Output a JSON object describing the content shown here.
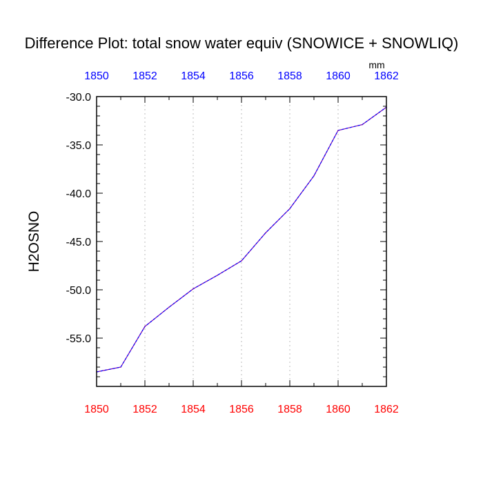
{
  "chart_data": {
    "type": "line",
    "title": "Difference Plot: total snow water equiv (SNOWICE + SNOWLIQ)",
    "units": "mm",
    "xlabel": "",
    "ylabel": "H2OSNO",
    "x": [
      1850,
      1851,
      1852,
      1853,
      1854,
      1855,
      1856,
      1857,
      1858,
      1859,
      1860,
      1861,
      1862
    ],
    "series": [
      {
        "values": [
          -58.5,
          -58.0,
          -53.8,
          -51.8,
          -49.9,
          -48.5,
          -47.0,
          -44.1,
          -41.6,
          -38.2,
          -33.5,
          -32.9,
          -31.1
        ],
        "color": "#7700aa",
        "dash_color": "#0000ff",
        "style": "dashed"
      }
    ],
    "xlim": [
      1850,
      1862
    ],
    "ylim": [
      -60.0,
      -30.0
    ],
    "x_ticks": [
      1850,
      1852,
      1854,
      1856,
      1858,
      1860,
      1862
    ],
    "x_tick_labels": [
      "1850",
      "1852",
      "1854",
      "1856",
      "1858",
      "1860",
      "1862"
    ],
    "y_ticks": [
      -30.0,
      -35.0,
      -40.0,
      -45.0,
      -50.0,
      -55.0
    ],
    "y_tick_labels": [
      "-30.0",
      "-35.0",
      "-40.0",
      "-45.0",
      "-50.0",
      "-55.0"
    ],
    "top_axis_color": "#0000ff",
    "bottom_axis_color": "#ff0000",
    "grid": "vertical-dotted",
    "legend": "none"
  }
}
